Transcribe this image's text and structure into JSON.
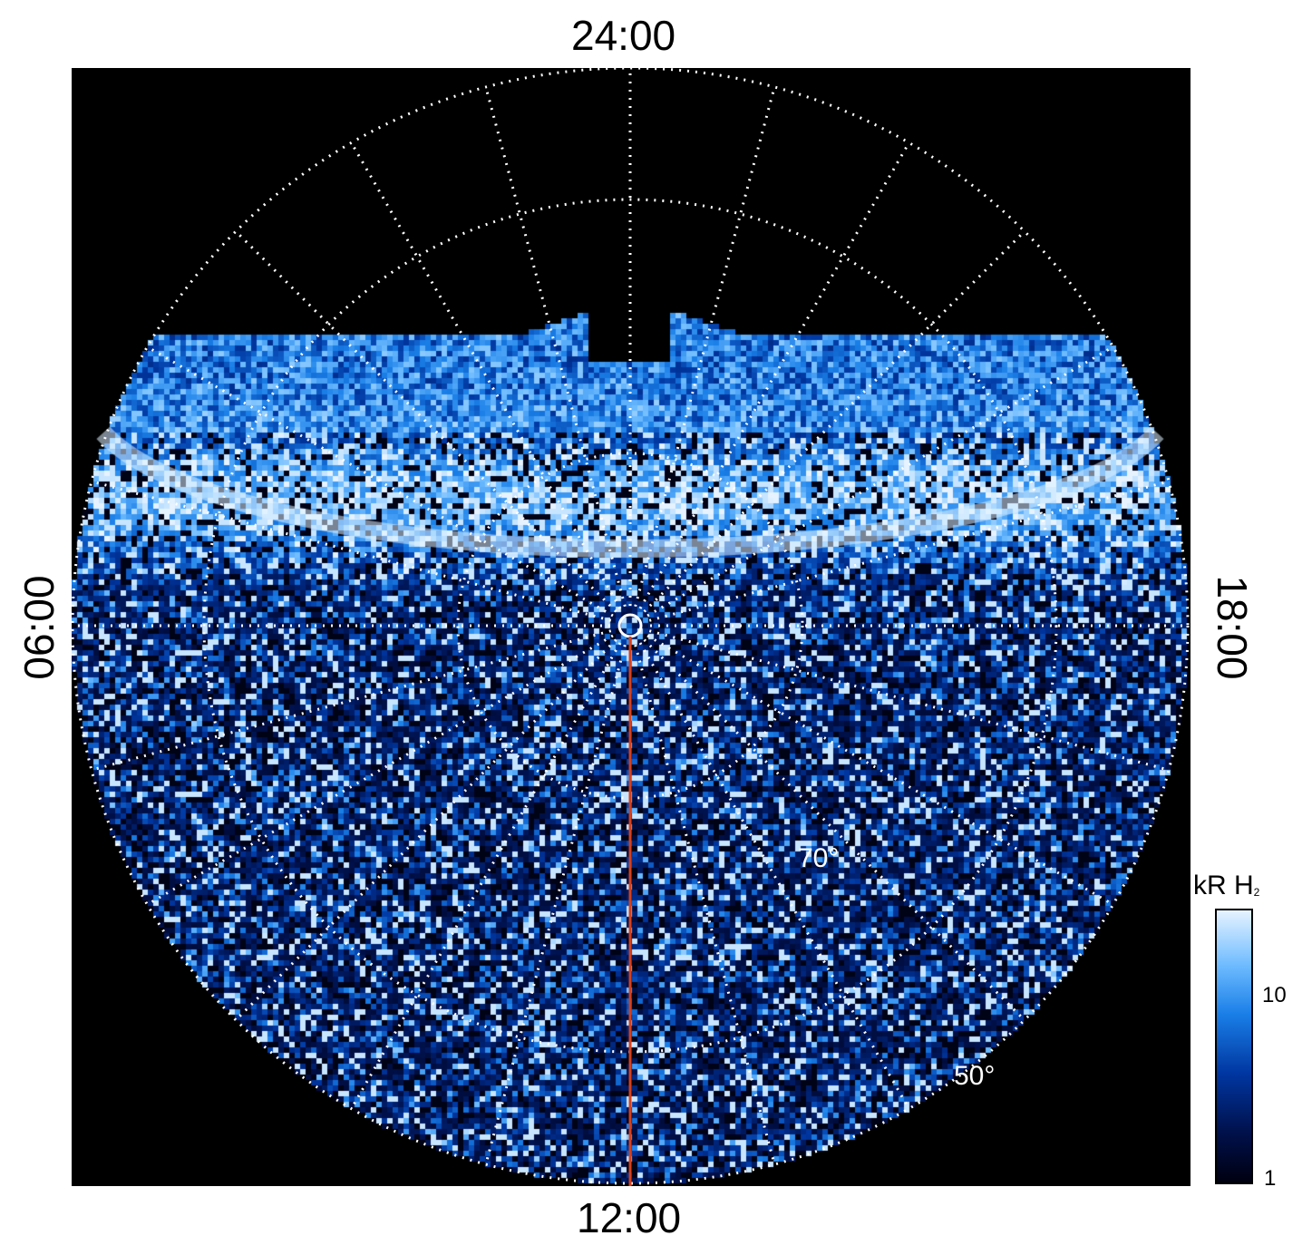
{
  "axes": {
    "top_label": "24:00",
    "bottom_label": "12:00",
    "left_label": "06:00",
    "right_label": "18:00"
  },
  "latitude_labels": {
    "inner": "70°",
    "outer": "50°"
  },
  "colorbar": {
    "title_main": "kR H",
    "title_sub": "2",
    "scale": "log",
    "ticks": [
      "10",
      "1"
    ],
    "colors": [
      "#000010",
      "#00104a",
      "#0036a0",
      "#1a7fe8",
      "#6fbcff",
      "#e6f3ff"
    ]
  },
  "meridian_line_color": "#d8401a",
  "background_color": "#000000"
}
